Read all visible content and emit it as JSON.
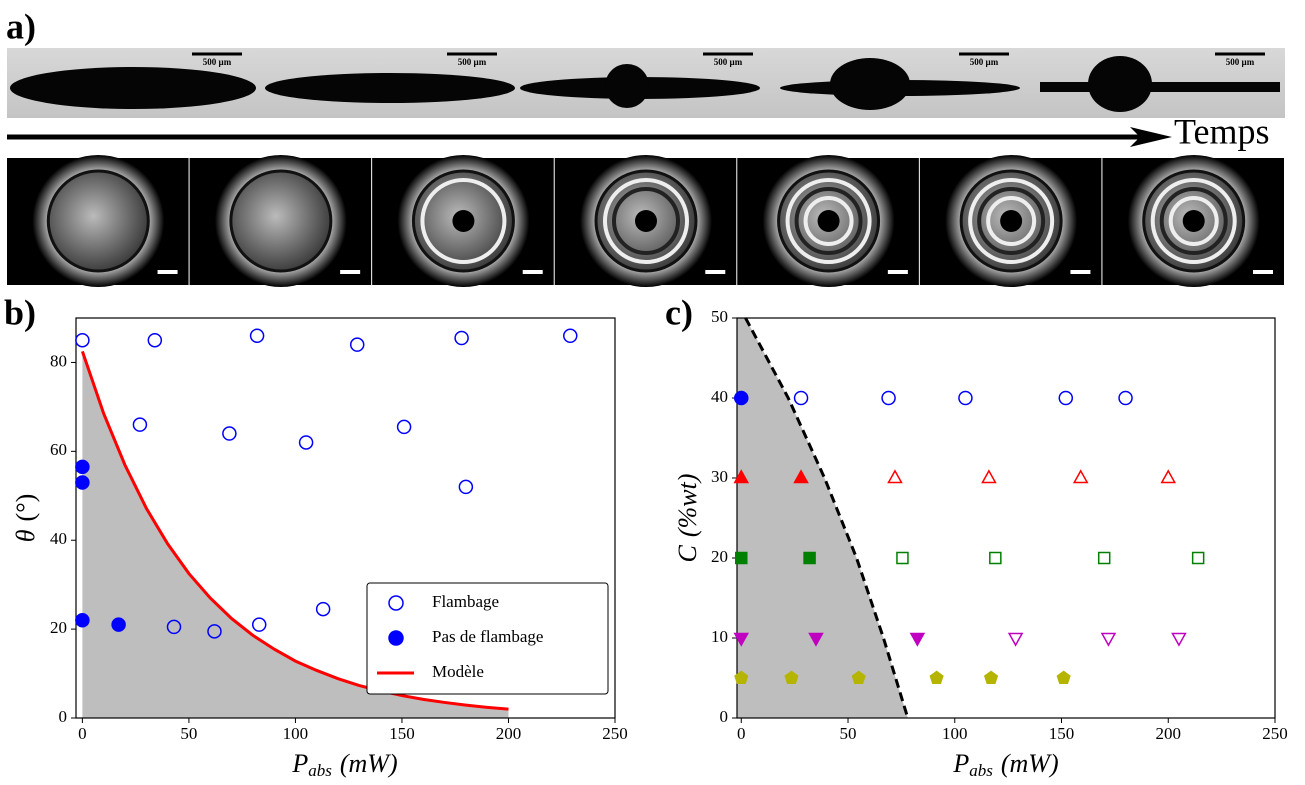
{
  "figure": {
    "panel_label": "a)",
    "time_label": "Temps",
    "scale_bar_label": "500 µm"
  },
  "chart_data": [
    {
      "type": "scatter",
      "panel_label": "b)",
      "xlim": [
        -3,
        250
      ],
      "xticks": [
        0,
        50,
        100,
        150,
        200,
        250
      ],
      "ylim": [
        0,
        90
      ],
      "yticks": [
        0,
        20,
        40,
        60,
        80
      ],
      "xlabel": "P",
      "xlabel_sub": "abs",
      "xlabel_unit": "(mW)",
      "ylabel": "θ",
      "ylabel_unit": "(°)",
      "legend": "lower right",
      "series": [
        {
          "name": "Flambage",
          "color": "#0000ff",
          "marker": "circle",
          "filled": false,
          "x": [
            0,
            34,
            82,
            129,
            178,
            229,
            27,
            69,
            105,
            151,
            180,
            43,
            62,
            83,
            113
          ],
          "values": [
            85,
            85,
            86,
            84,
            85.5,
            86,
            66,
            64,
            62,
            65.5,
            52,
            20.5,
            19.5,
            21,
            24.5
          ]
        },
        {
          "name": "Pas de flambage",
          "color": "#0000ff",
          "marker": "circle",
          "filled": true,
          "x": [
            0,
            0,
            0,
            17
          ],
          "values": [
            56.5,
            53,
            22,
            21
          ]
        },
        {
          "name": "Modèle",
          "type": "line",
          "color": "#ff0000",
          "fill_color": "#bebebe",
          "x": [
            0,
            10,
            20,
            30,
            40,
            50,
            60,
            70,
            80,
            90,
            100,
            110,
            120,
            130,
            140,
            150,
            160,
            170,
            180,
            190,
            200
          ],
          "values": [
            82.5,
            68.5,
            56.9,
            47.2,
            39.2,
            32.5,
            27.0,
            22.4,
            18.6,
            15.5,
            12.8,
            10.7,
            8.85,
            7.3,
            6.1,
            5.05,
            4.2,
            3.5,
            2.9,
            2.4,
            2.0
          ]
        }
      ]
    },
    {
      "type": "scatter",
      "panel_label": "c)",
      "xlim": [
        -2,
        250
      ],
      "xticks": [
        0,
        50,
        100,
        150,
        200,
        250
      ],
      "ylim": [
        0,
        50
      ],
      "yticks": [
        0,
        10,
        20,
        30,
        40,
        50
      ],
      "xlabel": "P",
      "xlabel_sub": "abs",
      "xlabel_unit": "(mW)",
      "ylabel": "C",
      "ylabel_unit": "(%wt)",
      "series": [
        {
          "color": "#0000ff",
          "marker": "circle",
          "filled": true,
          "x": [
            0
          ],
          "values": [
            40
          ]
        },
        {
          "color": "#0000ff",
          "marker": "circle",
          "filled": false,
          "x": [
            28,
            69,
            105,
            152,
            180
          ],
          "values": [
            40,
            40,
            40,
            40,
            40
          ]
        },
        {
          "color": "#ff0000",
          "marker": "triangle-up",
          "filled": true,
          "x": [
            0,
            28
          ],
          "values": [
            30,
            30
          ]
        },
        {
          "color": "#ff0000",
          "marker": "triangle-up",
          "filled": false,
          "x": [
            72,
            116,
            159,
            200
          ],
          "values": [
            30,
            30,
            30,
            30
          ]
        },
        {
          "color": "#008000",
          "marker": "square",
          "filled": true,
          "x": [
            0,
            32
          ],
          "values": [
            20,
            20
          ]
        },
        {
          "color": "#008000",
          "marker": "square",
          "filled": false,
          "x": [
            75.5,
            119,
            170,
            214
          ],
          "values": [
            20,
            20,
            20,
            20
          ]
        },
        {
          "color": "#c000c0",
          "marker": "triangle-down",
          "filled": true,
          "x": [
            0,
            35,
            82.5
          ],
          "values": [
            10,
            10,
            10
          ]
        },
        {
          "color": "#c000c0",
          "marker": "triangle-down",
          "filled": false,
          "x": [
            128.5,
            172,
            205
          ],
          "values": [
            10,
            10,
            10
          ]
        },
        {
          "color": "#b5b500",
          "marker": "pentagon",
          "filled": true,
          "x": [
            0,
            23.5,
            55,
            91.5,
            117,
            151
          ],
          "values": [
            5,
            5,
            5,
            5,
            5,
            5
          ]
        },
        {
          "type": "line",
          "color": "#000000",
          "dashed": true,
          "fill_color": "#bebebe",
          "fill_side": "left",
          "x": [
            2,
            22,
            39,
            54,
            66.6,
            78
          ],
          "values": [
            50,
            40,
            30,
            20,
            10,
            0
          ]
        }
      ]
    }
  ]
}
